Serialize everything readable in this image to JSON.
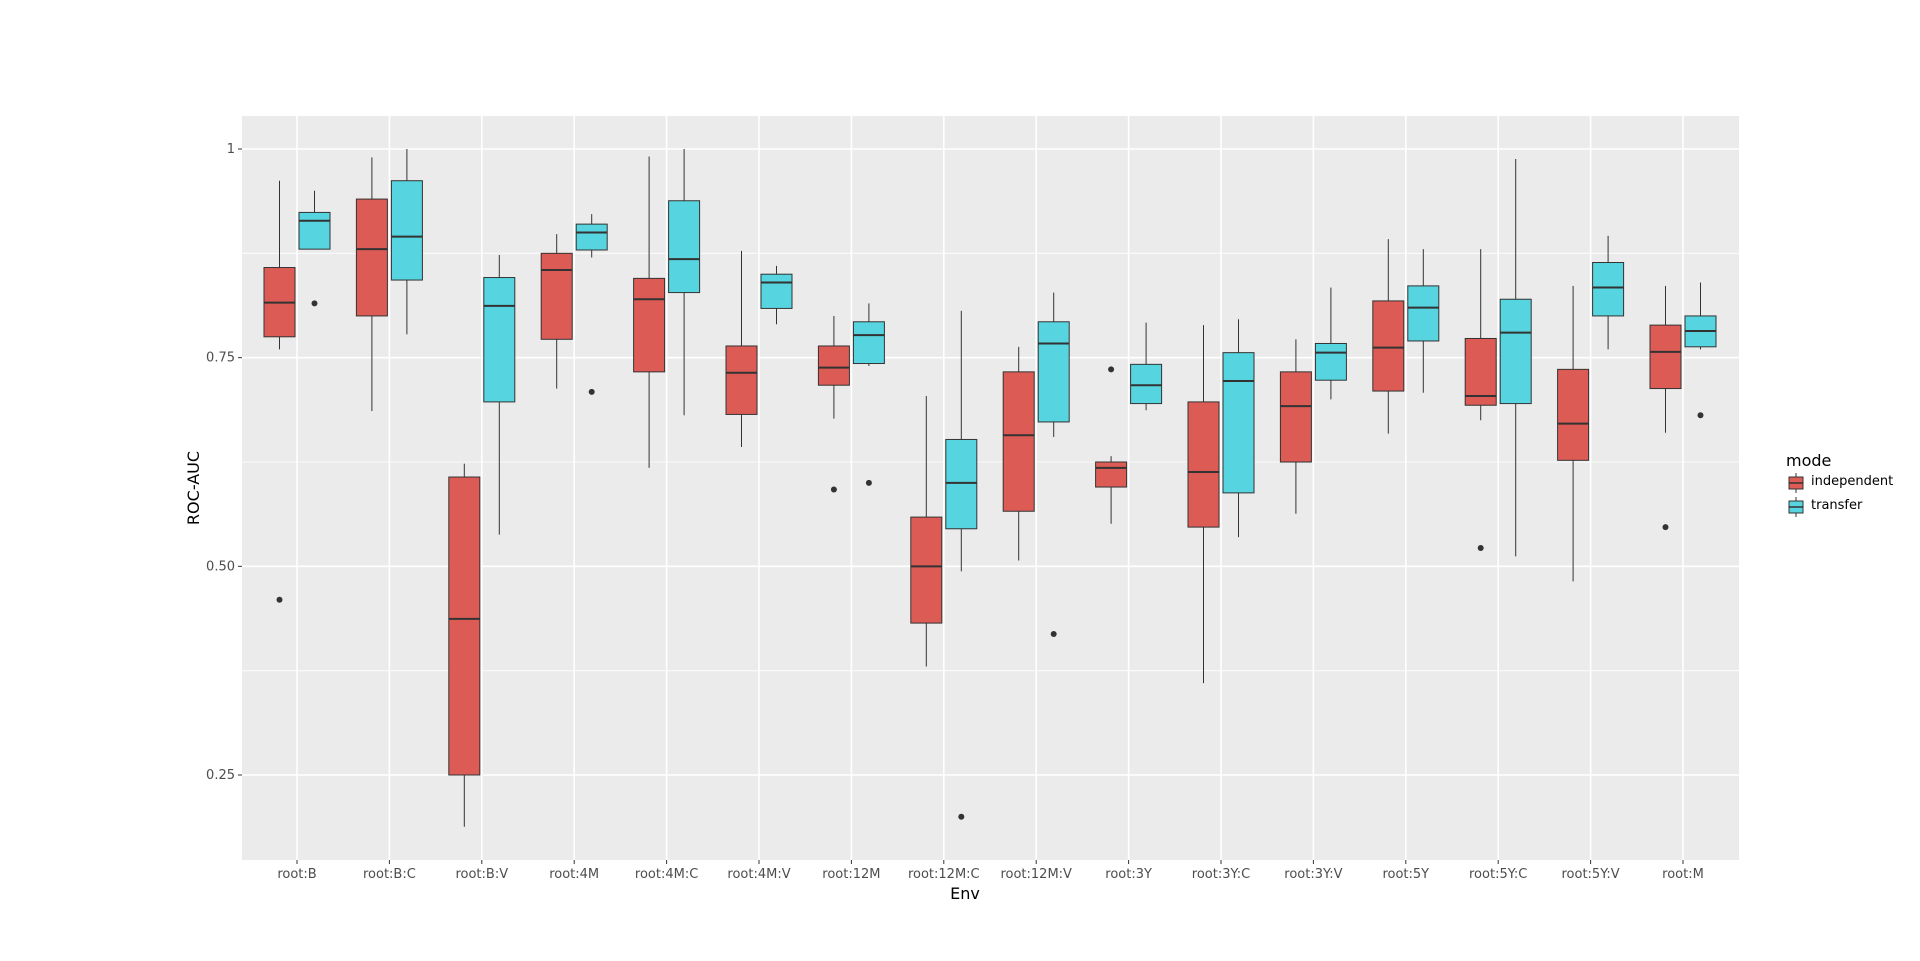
{
  "chart_data": {
    "type": "boxplot",
    "xlabel": "Env",
    "ylabel": "ROC-AUC",
    "ylim": [
      0.15,
      1.04
    ],
    "yticks": [
      {
        "value": 0.25,
        "label": "0.25"
      },
      {
        "value": 0.5,
        "label": "0.50"
      },
      {
        "value": 0.75,
        "label": "0.75"
      },
      {
        "value": 1.0,
        "label": "1"
      }
    ],
    "legend": {
      "title": "mode",
      "position": "right"
    },
    "categories": [
      "root:B",
      "root:B:C",
      "root:B:V",
      "root:4M",
      "root:4M:C",
      "root:4M:V",
      "root:12M",
      "root:12M:C",
      "root:12M:V",
      "root:3Y",
      "root:3Y:C",
      "root:3Y:V",
      "root:5Y",
      "root:5Y:C",
      "root:5Y:V",
      "root:M"
    ],
    "series": [
      {
        "name": "independent",
        "color": "#dc5c55",
        "boxes": [
          {
            "whisker_low": 0.76,
            "q1": 0.775,
            "median": 0.816,
            "q3": 0.858,
            "whisker_high": 0.962,
            "outliers": [
              0.46
            ]
          },
          {
            "whisker_low": 0.686,
            "q1": 0.8,
            "median": 0.88,
            "q3": 0.94,
            "whisker_high": 0.99,
            "outliers": []
          },
          {
            "whisker_low": 0.188,
            "q1": 0.25,
            "median": 0.437,
            "q3": 0.607,
            "whisker_high": 0.623,
            "outliers": []
          },
          {
            "whisker_low": 0.713,
            "q1": 0.772,
            "median": 0.855,
            "q3": 0.875,
            "whisker_high": 0.898,
            "outliers": []
          },
          {
            "whisker_low": 0.618,
            "q1": 0.733,
            "median": 0.82,
            "q3": 0.845,
            "whisker_high": 0.991,
            "outliers": []
          },
          {
            "whisker_low": 0.643,
            "q1": 0.682,
            "median": 0.732,
            "q3": 0.764,
            "whisker_high": 0.878,
            "outliers": []
          },
          {
            "whisker_low": 0.677,
            "q1": 0.717,
            "median": 0.738,
            "q3": 0.764,
            "whisker_high": 0.8,
            "outliers": [
              0.592
            ]
          },
          {
            "whisker_low": 0.38,
            "q1": 0.432,
            "median": 0.5,
            "q3": 0.559,
            "whisker_high": 0.704,
            "outliers": []
          },
          {
            "whisker_low": 0.507,
            "q1": 0.566,
            "median": 0.657,
            "q3": 0.733,
            "whisker_high": 0.763,
            "outliers": []
          },
          {
            "whisker_low": 0.551,
            "q1": 0.595,
            "median": 0.618,
            "q3": 0.625,
            "whisker_high": 0.632,
            "outliers": [
              0.736
            ]
          },
          {
            "whisker_low": 0.36,
            "q1": 0.547,
            "median": 0.613,
            "q3": 0.697,
            "whisker_high": 0.789,
            "outliers": []
          },
          {
            "whisker_low": 0.563,
            "q1": 0.625,
            "median": 0.692,
            "q3": 0.733,
            "whisker_high": 0.772,
            "outliers": []
          },
          {
            "whisker_low": 0.659,
            "q1": 0.71,
            "median": 0.762,
            "q3": 0.818,
            "whisker_high": 0.892,
            "outliers": []
          },
          {
            "whisker_low": 0.675,
            "q1": 0.693,
            "median": 0.704,
            "q3": 0.773,
            "whisker_high": 0.88,
            "outliers": [
              0.522
            ]
          },
          {
            "whisker_low": 0.482,
            "q1": 0.627,
            "median": 0.671,
            "q3": 0.736,
            "whisker_high": 0.836,
            "outliers": []
          },
          {
            "whisker_low": 0.66,
            "q1": 0.713,
            "median": 0.757,
            "q3": 0.789,
            "whisker_high": 0.836,
            "outliers": [
              0.547
            ]
          }
        ]
      },
      {
        "name": "transfer",
        "color": "#56d4df",
        "boxes": [
          {
            "whisker_low": 0.88,
            "q1": 0.88,
            "median": 0.914,
            "q3": 0.924,
            "whisker_high": 0.95,
            "outliers": [
              0.815
            ]
          },
          {
            "whisker_low": 0.778,
            "q1": 0.843,
            "median": 0.895,
            "q3": 0.962,
            "whisker_high": 1.0,
            "outliers": []
          },
          {
            "whisker_low": 0.538,
            "q1": 0.697,
            "median": 0.812,
            "q3": 0.846,
            "whisker_high": 0.873,
            "outliers": []
          },
          {
            "whisker_low": 0.87,
            "q1": 0.879,
            "median": 0.9,
            "q3": 0.91,
            "whisker_high": 0.922,
            "outliers": [
              0.709
            ]
          },
          {
            "whisker_low": 0.681,
            "q1": 0.828,
            "median": 0.868,
            "q3": 0.938,
            "whisker_high": 1.0,
            "outliers": []
          },
          {
            "whisker_low": 0.79,
            "q1": 0.809,
            "median": 0.84,
            "q3": 0.85,
            "whisker_high": 0.86,
            "outliers": []
          },
          {
            "whisker_low": 0.74,
            "q1": 0.743,
            "median": 0.777,
            "q3": 0.793,
            "whisker_high": 0.815,
            "outliers": [
              0.6
            ]
          },
          {
            "whisker_low": 0.494,
            "q1": 0.545,
            "median": 0.6,
            "q3": 0.652,
            "whisker_high": 0.806,
            "outliers": [
              0.2
            ]
          },
          {
            "whisker_low": 0.655,
            "q1": 0.673,
            "median": 0.767,
            "q3": 0.793,
            "whisker_high": 0.828,
            "outliers": [
              0.419
            ]
          },
          {
            "whisker_low": 0.687,
            "q1": 0.695,
            "median": 0.717,
            "q3": 0.742,
            "whisker_high": 0.792,
            "outliers": []
          },
          {
            "whisker_low": 0.535,
            "q1": 0.588,
            "median": 0.722,
            "q3": 0.756,
            "whisker_high": 0.796,
            "outliers": []
          },
          {
            "whisker_low": 0.7,
            "q1": 0.723,
            "median": 0.756,
            "q3": 0.767,
            "whisker_high": 0.834,
            "outliers": []
          },
          {
            "whisker_low": 0.708,
            "q1": 0.77,
            "median": 0.81,
            "q3": 0.836,
            "whisker_high": 0.88,
            "outliers": []
          },
          {
            "whisker_low": 0.512,
            "q1": 0.695,
            "median": 0.78,
            "q3": 0.82,
            "whisker_high": 0.988,
            "outliers": []
          },
          {
            "whisker_low": 0.76,
            "q1": 0.8,
            "median": 0.834,
            "q3": 0.864,
            "whisker_high": 0.896,
            "outliers": []
          },
          {
            "whisker_low": 0.76,
            "q1": 0.763,
            "median": 0.782,
            "q3": 0.8,
            "whisker_high": 0.84,
            "outliers": [
              0.681
            ]
          }
        ]
      }
    ]
  }
}
